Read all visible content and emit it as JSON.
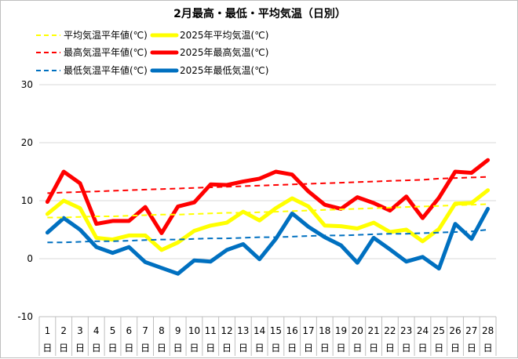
{
  "chart_data": {
    "type": "line",
    "title": "2月最高・最低・平均気温（日別）",
    "xlabel": "",
    "ylabel": "",
    "ylim": [
      -10,
      30
    ],
    "yticks": [
      -10,
      0,
      10,
      20,
      30
    ],
    "grid": "horizontal",
    "legend_position": "top",
    "day_suffix": "日",
    "categories": [
      "1",
      "2",
      "3",
      "4",
      "5",
      "6",
      "7",
      "8",
      "9",
      "10",
      "11",
      "12",
      "13",
      "14",
      "15",
      "16",
      "17",
      "18",
      "19",
      "20",
      "21",
      "22",
      "23",
      "24",
      "25",
      "26",
      "27",
      "28"
    ],
    "series": [
      {
        "name": "平均気温平年値(℃)",
        "color": "#ffff00",
        "style": "dashed",
        "values": [
          7.1,
          7.1,
          7.2,
          7.3,
          7.3,
          7.4,
          7.5,
          7.6,
          7.6,
          7.7,
          7.8,
          7.9,
          7.9,
          8.0,
          8.1,
          8.2,
          8.3,
          8.4,
          8.5,
          8.6,
          8.7,
          8.8,
          8.9,
          9.0,
          9.1,
          9.2,
          9.3,
          9.4
        ]
      },
      {
        "name": "2025年平均気温(℃)",
        "color": "#ffff00",
        "style": "solid",
        "values": [
          7.7,
          10.0,
          8.7,
          3.6,
          3.3,
          4.0,
          4.0,
          1.5,
          2.8,
          4.8,
          5.7,
          6.2,
          8.1,
          6.6,
          8.7,
          10.4,
          9.0,
          5.7,
          5.6,
          5.2,
          6.2,
          4.6,
          5.0,
          3.0,
          5.1,
          9.5,
          9.6,
          11.8
        ]
      },
      {
        "name": "最高気温平年値(℃)",
        "color": "#ff0000",
        "style": "dashed",
        "values": [
          11.3,
          11.4,
          11.5,
          11.6,
          11.7,
          11.8,
          11.9,
          12.0,
          12.1,
          12.2,
          12.3,
          12.4,
          12.5,
          12.6,
          12.7,
          12.8,
          12.9,
          13.0,
          13.1,
          13.2,
          13.3,
          13.4,
          13.5,
          13.6,
          13.8,
          13.9,
          14.0,
          14.1
        ]
      },
      {
        "name": "2025年最高気温(℃)",
        "color": "#ff0000",
        "style": "solid",
        "values": [
          9.8,
          15.0,
          13.0,
          6.0,
          6.5,
          6.5,
          8.9,
          4.4,
          9.0,
          9.7,
          12.8,
          12.7,
          13.3,
          13.8,
          15.0,
          14.5,
          11.6,
          9.3,
          8.6,
          10.6,
          9.6,
          8.3,
          10.7,
          7.0,
          10.5,
          15.0,
          14.8,
          17.0
        ]
      },
      {
        "name": "最低気温平年値(℃)",
        "color": "#0070c0",
        "style": "dashed",
        "values": [
          2.8,
          2.8,
          2.9,
          3.0,
          3.0,
          3.1,
          3.2,
          3.3,
          3.3,
          3.4,
          3.5,
          3.5,
          3.6,
          3.7,
          3.7,
          3.8,
          3.9,
          4.0,
          4.0,
          4.1,
          4.2,
          4.3,
          4.3,
          4.4,
          4.5,
          4.6,
          4.7,
          5.0
        ]
      },
      {
        "name": "2025年最低気温(℃)",
        "color": "#0070c0",
        "style": "solid",
        "values": [
          4.5,
          7.0,
          5.0,
          2.0,
          1.0,
          2.0,
          -0.6,
          -1.6,
          -2.6,
          -0.3,
          -0.5,
          1.5,
          2.5,
          -0.1,
          3.4,
          7.8,
          5.5,
          3.7,
          2.3,
          -0.7,
          3.6,
          1.6,
          -0.5,
          0.3,
          -1.7,
          6.0,
          3.4,
          8.6
        ]
      }
    ]
  }
}
